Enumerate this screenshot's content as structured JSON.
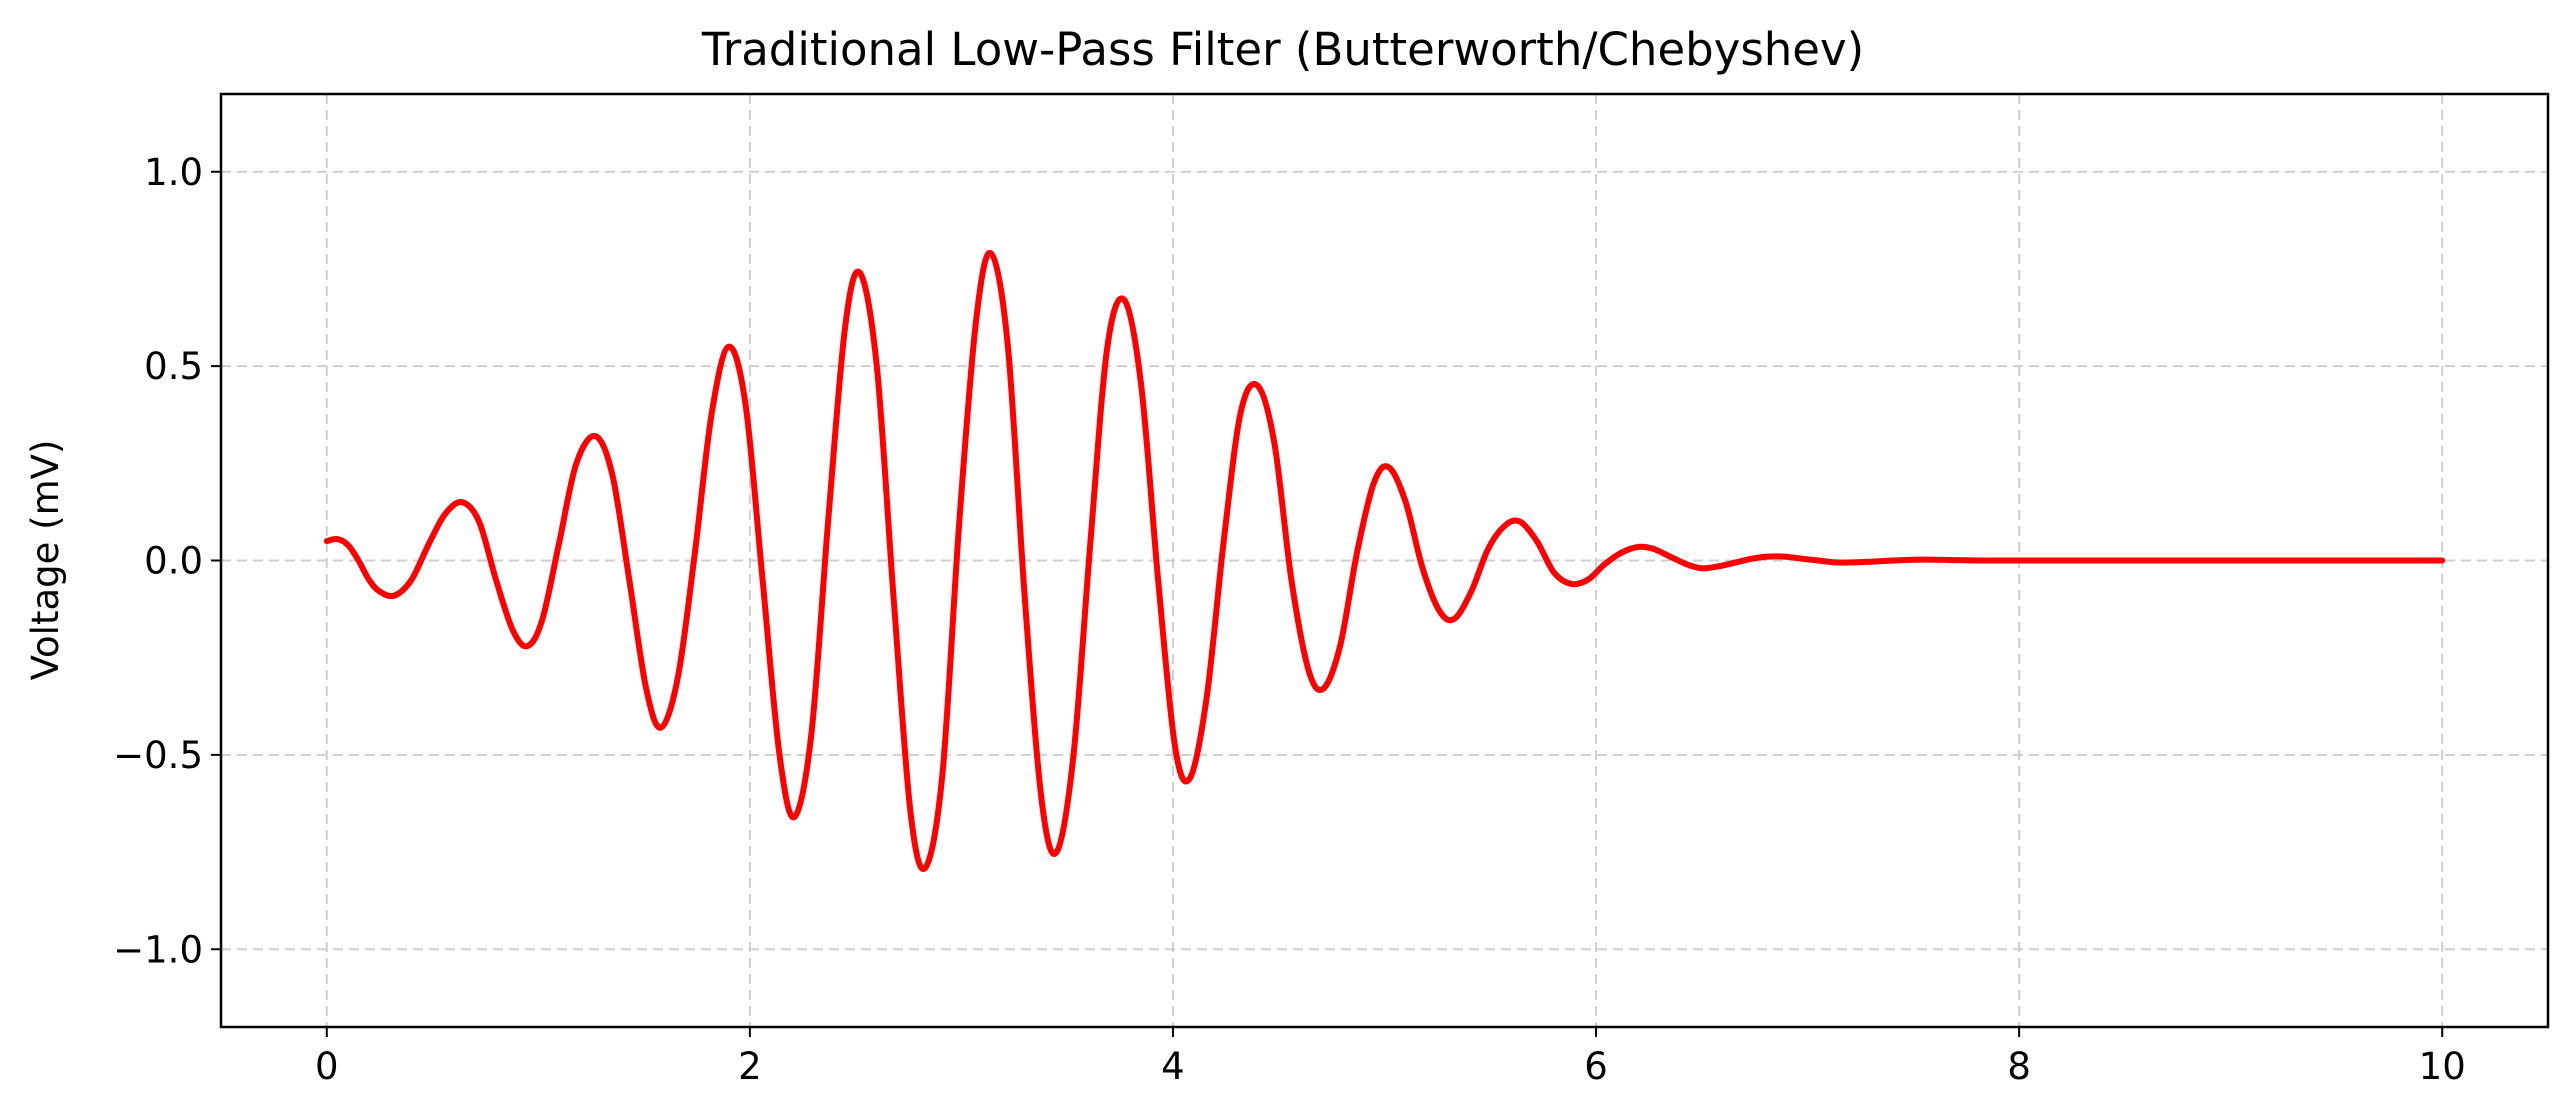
{
  "chart_data": {
    "type": "line",
    "title": "Traditional Low-Pass Filter (Butterworth/Chebyshev)",
    "xlabel": "",
    "ylabel": "Voltage (mV)",
    "xlim": [
      -0.5,
      10.5
    ],
    "ylim": [
      -1.2,
      1.2
    ],
    "x_ticks": [
      0,
      2,
      4,
      6,
      8,
      10
    ],
    "x_tick_labels": [
      "0",
      "2",
      "4",
      "6",
      "8",
      "10"
    ],
    "y_ticks": [
      -1.0,
      -0.5,
      0.0,
      0.5,
      1.0
    ],
    "y_tick_labels": [
      "−1.0",
      "−0.5",
      "0.0",
      "0.5",
      "1.0"
    ],
    "grid": true,
    "legend": "none",
    "colors": {
      "series": "#ff0000",
      "grid": "#cfcfcf",
      "axes": "#000000"
    },
    "series": [
      {
        "name": "",
        "x": [
          0.0,
          0.05,
          0.1,
          0.15,
          0.2,
          0.25,
          0.32,
          0.4,
          0.48,
          0.56,
          0.64,
          0.72,
          0.8,
          0.88,
          0.95,
          1.02,
          1.1,
          1.18,
          1.27,
          1.35,
          1.43,
          1.51,
          1.58,
          1.66,
          1.74,
          1.82,
          1.9,
          1.98,
          2.06,
          2.14,
          2.21,
          2.29,
          2.37,
          2.45,
          2.52,
          2.6,
          2.68,
          2.76,
          2.83,
          2.91,
          2.99,
          3.07,
          3.14,
          3.22,
          3.3,
          3.38,
          3.45,
          3.53,
          3.61,
          3.69,
          3.77,
          3.85,
          3.93,
          4.01,
          4.08,
          4.16,
          4.24,
          4.32,
          4.4,
          4.48,
          4.56,
          4.64,
          4.71,
          4.79,
          4.87,
          4.95,
          5.02,
          5.1,
          5.18,
          5.26,
          5.33,
          5.41,
          5.49,
          5.57,
          5.64,
          5.72,
          5.8,
          5.88,
          5.96,
          6.04,
          6.12,
          6.2,
          6.27,
          6.35,
          6.43,
          6.5,
          6.58,
          6.66,
          6.74,
          6.81,
          6.89,
          6.97,
          7.05,
          7.13,
          7.21,
          7.3,
          7.4,
          7.5,
          7.6,
          7.7,
          7.8,
          7.9,
          8.0,
          8.5,
          9.0,
          9.5,
          10.0
        ],
        "y": [
          0.05,
          0.055,
          0.04,
          0.0,
          -0.05,
          -0.08,
          -0.09,
          -0.05,
          0.04,
          0.12,
          0.15,
          0.1,
          -0.05,
          -0.18,
          -0.22,
          -0.15,
          0.05,
          0.25,
          0.32,
          0.22,
          -0.05,
          -0.33,
          -0.43,
          -0.3,
          0.02,
          0.38,
          0.55,
          0.4,
          -0.05,
          -0.5,
          -0.66,
          -0.45,
          0.1,
          0.6,
          0.74,
          0.5,
          -0.1,
          -0.65,
          -0.79,
          -0.55,
          0.1,
          0.62,
          0.79,
          0.55,
          -0.1,
          -0.62,
          -0.75,
          -0.5,
          0.05,
          0.55,
          0.67,
          0.45,
          -0.05,
          -0.48,
          -0.56,
          -0.35,
          0.05,
          0.38,
          0.45,
          0.3,
          -0.05,
          -0.28,
          -0.33,
          -0.22,
          0.02,
          0.2,
          0.24,
          0.15,
          -0.02,
          -0.13,
          -0.15,
          -0.08,
          0.03,
          0.09,
          0.1,
          0.05,
          -0.03,
          -0.06,
          -0.05,
          -0.01,
          0.02,
          0.035,
          0.03,
          0.01,
          -0.01,
          -0.02,
          -0.015,
          -0.005,
          0.005,
          0.01,
          0.01,
          0.005,
          0.0,
          -0.005,
          -0.005,
          -0.003,
          0.0,
          0.002,
          0.002,
          0.001,
          0.0,
          0.0,
          0.0,
          0.0,
          0.0,
          0.0,
          0.0
        ]
      }
    ]
  }
}
